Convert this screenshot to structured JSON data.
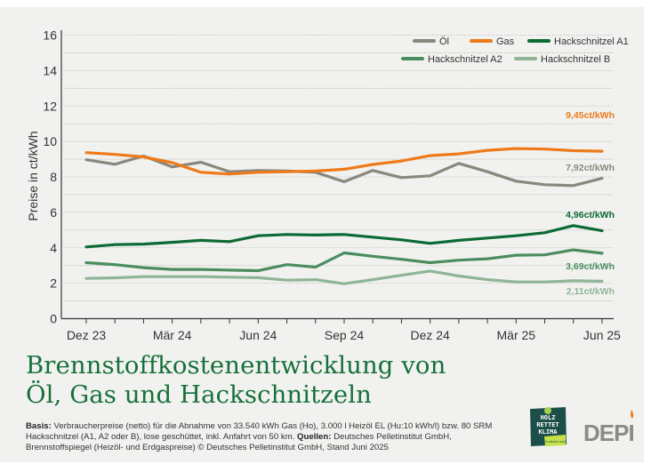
{
  "chart_data": {
    "type": "line",
    "title": "Brennstoffkostenentwicklung von Öl, Gas und Hackschnitzeln",
    "title_lines": [
      "Brennstoffkostenentwicklung von",
      "Öl, Gas und Hackschnitzeln"
    ],
    "xlabel": "",
    "ylabel": "Preise in ct/kWh",
    "ylim": [
      0,
      16
    ],
    "yticks": [
      0,
      2,
      4,
      6,
      8,
      10,
      12,
      14,
      16
    ],
    "grid": true,
    "legend_position": "top-right",
    "x": [
      "Dez 23",
      "Jan 24",
      "Feb 24",
      "Mär 24",
      "Apr 24",
      "Mai 24",
      "Jun 24",
      "Jul 24",
      "Aug 24",
      "Sep 24",
      "Okt 24",
      "Nov 24",
      "Dez 24",
      "Jan 25",
      "Feb 25",
      "Mär 25",
      "Apr 25",
      "Mai 25",
      "Jun 25"
    ],
    "xtick_labels": [
      {
        "index": 0,
        "label": "Dez 23"
      },
      {
        "index": 3,
        "label": "Mär 24"
      },
      {
        "index": 6,
        "label": "Jun 24"
      },
      {
        "index": 9,
        "label": "Sep 24"
      },
      {
        "index": 12,
        "label": "Dez 24"
      },
      {
        "index": 15,
        "label": "Mär 25"
      },
      {
        "index": 18,
        "label": "Jun 25"
      }
    ],
    "series": [
      {
        "name": "Öl",
        "color": "#8a877d",
        "values": [
          8.97,
          8.71,
          9.18,
          8.56,
          8.83,
          8.29,
          8.36,
          8.33,
          8.26,
          7.73,
          8.36,
          7.96,
          8.06,
          8.76,
          8.29,
          7.76,
          7.56,
          7.51,
          7.92
        ],
        "end_label": "7,92ct/kWh"
      },
      {
        "name": "Gas",
        "color": "#ee7a1a",
        "values": [
          9.37,
          9.27,
          9.13,
          8.8,
          8.26,
          8.16,
          8.26,
          8.29,
          8.33,
          8.43,
          8.7,
          8.9,
          9.2,
          9.3,
          9.5,
          9.6,
          9.57,
          9.48,
          9.45
        ],
        "end_label": "9,45ct/kWh"
      },
      {
        "name": "Hackschnitzel A1",
        "color": "#0c6a34",
        "values": [
          4.05,
          4.18,
          4.21,
          4.31,
          4.42,
          4.35,
          4.68,
          4.75,
          4.72,
          4.75,
          4.6,
          4.45,
          4.25,
          4.42,
          4.55,
          4.68,
          4.85,
          5.25,
          4.96
        ],
        "end_label": "4,96ct/kWh"
      },
      {
        "name": "Hackschnitzel A2",
        "color": "#4b8d5f",
        "values": [
          3.16,
          3.05,
          2.88,
          2.78,
          2.78,
          2.74,
          2.71,
          3.05,
          2.91,
          3.71,
          3.52,
          3.35,
          3.16,
          3.3,
          3.38,
          3.58,
          3.6,
          3.88,
          3.69
        ],
        "end_label": "3,69ct/kWh"
      },
      {
        "name": "Hackschnitzel B",
        "color": "#8fb496",
        "values": [
          2.27,
          2.3,
          2.37,
          2.37,
          2.37,
          2.34,
          2.31,
          2.17,
          2.2,
          1.97,
          2.2,
          2.45,
          2.69,
          2.41,
          2.2,
          2.07,
          2.07,
          2.14,
          2.11
        ],
        "end_label": "2,11ct/kWh"
      }
    ],
    "legend_rows": [
      [
        "Öl",
        "Gas",
        "Hackschnitzel A1"
      ],
      [
        "Hackschnitzel A2",
        "Hackschnitzel B"
      ]
    ]
  },
  "footnote": {
    "basis_label": "Basis:",
    "basis_text": " Verbraucherpreise (netto) für die Abnahme von 33.540 kWh Gas (Ho), 3.000 l Heizöl EL (Hu:10 kWh/l) bzw. 80 SRM Hackschnitzel (A1, A2 oder B), lose geschüttet, inkl. Anfahrt von 50 km. ",
    "sources_label": "Quellen:",
    "sources_text": " Deutsches Pelletinstitut GmbH, Brennstoffspiegel (Heizöl- und Erdgaspreise) © Deutsches Pelletinstitut GmbH, Stand Juni 2025"
  },
  "logos": {
    "holz_lines": [
      "HOLZ",
      "RETTET",
      "KLIMA"
    ],
    "holz_tag": "Es wächst nach",
    "depi": "DEPI"
  }
}
